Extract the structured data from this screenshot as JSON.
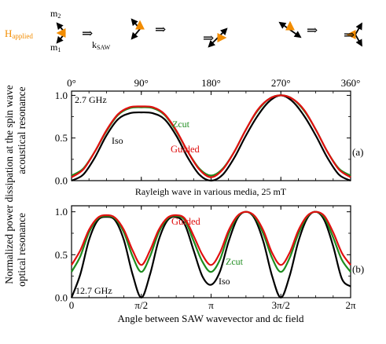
{
  "header": {
    "h_label": "H",
    "h_sub": "applied",
    "m2_label": "m",
    "m2_sub": "2",
    "m1_label": "m",
    "m1_sub": "1",
    "k_label": "k",
    "k_sub": "SAW",
    "arrow_glyph": "⇒",
    "h_color": "#F28C00"
  },
  "ylabel_lines": [
    "Normalized power dissipation at the spin wave",
    "acoustical resonance",
    "optical resonance"
  ],
  "xlabel": "Angle between SAW wavevector and dc field",
  "colors": {
    "iso": "#000000",
    "zcut": "#1E8C1E",
    "guided": "#E01010"
  },
  "chart_data": [
    {
      "type": "line",
      "panel_label": "(a)",
      "inset_label": "2.7 GHz",
      "caption": "Rayleigh wave in various media, 25 mT",
      "xlim": [
        0,
        360
      ],
      "ylim": [
        0,
        1.05
      ],
      "x_ticks": [
        "0°",
        "90°",
        "180°",
        "270°",
        "360°"
      ],
      "x_tick_values": [
        0,
        90,
        180,
        270,
        360
      ],
      "y_ticks": [
        "0.0",
        "0.5",
        "1.0"
      ],
      "y_tick_values": [
        0,
        0.5,
        1.0
      ],
      "x": [
        0,
        15,
        30,
        45,
        60,
        75,
        90,
        105,
        120,
        135,
        150,
        165,
        180,
        195,
        210,
        225,
        240,
        255,
        270,
        285,
        300,
        315,
        330,
        345,
        360
      ],
      "series": [
        {
          "name": "Iso",
          "key": "iso",
          "values": [
            0.0,
            0.07,
            0.27,
            0.53,
            0.72,
            0.79,
            0.8,
            0.79,
            0.72,
            0.53,
            0.27,
            0.07,
            0.0,
            0.07,
            0.27,
            0.53,
            0.76,
            0.93,
            1.0,
            0.93,
            0.76,
            0.53,
            0.27,
            0.07,
            0.0
          ]
        },
        {
          "name": "Zcut",
          "key": "zcut",
          "values": [
            0.06,
            0.14,
            0.34,
            0.58,
            0.77,
            0.85,
            0.86,
            0.85,
            0.77,
            0.58,
            0.34,
            0.14,
            0.06,
            0.14,
            0.34,
            0.6,
            0.82,
            0.96,
            1.0,
            0.96,
            0.82,
            0.6,
            0.34,
            0.14,
            0.06
          ]
        },
        {
          "name": "Guided",
          "key": "guided",
          "values": [
            0.04,
            0.13,
            0.34,
            0.59,
            0.78,
            0.86,
            0.87,
            0.86,
            0.78,
            0.59,
            0.34,
            0.13,
            0.04,
            0.13,
            0.34,
            0.6,
            0.83,
            0.96,
            1.0,
            0.96,
            0.83,
            0.6,
            0.34,
            0.13,
            0.04
          ]
        }
      ],
      "annotations": [
        "Zcut",
        "Iso",
        "Guided"
      ]
    },
    {
      "type": "line",
      "panel_label": "(b)",
      "inset_label": "12.7 GHz",
      "xlim": [
        0,
        360
      ],
      "ylim": [
        0,
        1.07
      ],
      "x_ticks": [
        "0",
        "π/2",
        "π",
        "3π/2",
        "2π"
      ],
      "x_tick_values": [
        0,
        90,
        180,
        270,
        360
      ],
      "y_ticks": [
        "0.0",
        "0.5",
        "1.0"
      ],
      "y_tick_values": [
        0,
        0.5,
        1.0
      ],
      "x": [
        0,
        11.25,
        22.5,
        33.75,
        45,
        56.25,
        67.5,
        78.75,
        90,
        101.25,
        112.5,
        123.75,
        135,
        146.25,
        157.5,
        168.75,
        180,
        191.25,
        202.5,
        213.75,
        225,
        236.25,
        247.5,
        258.75,
        270,
        281.25,
        292.5,
        303.75,
        315,
        326.25,
        337.5,
        348.75,
        360
      ],
      "series": [
        {
          "name": "Iso",
          "key": "iso",
          "values": [
            0.0,
            0.27,
            0.67,
            0.9,
            0.94,
            0.9,
            0.67,
            0.27,
            0.0,
            0.27,
            0.67,
            0.9,
            0.94,
            0.85,
            0.55,
            0.25,
            0.15,
            0.3,
            0.65,
            0.92,
            1.0,
            0.92,
            0.65,
            0.25,
            0.0,
            0.25,
            0.65,
            0.92,
            1.0,
            0.9,
            0.6,
            0.22,
            0.13
          ]
        },
        {
          "name": "Zcut",
          "key": "zcut",
          "values": [
            0.3,
            0.48,
            0.76,
            0.92,
            0.95,
            0.92,
            0.76,
            0.48,
            0.3,
            0.48,
            0.76,
            0.92,
            0.95,
            0.9,
            0.66,
            0.42,
            0.3,
            0.44,
            0.74,
            0.94,
            1.0,
            0.94,
            0.74,
            0.46,
            0.3,
            0.46,
            0.74,
            0.94,
            1.0,
            0.93,
            0.7,
            0.44,
            0.3
          ]
        },
        {
          "name": "Guided",
          "key": "guided",
          "values": [
            0.38,
            0.55,
            0.79,
            0.93,
            0.96,
            0.93,
            0.79,
            0.55,
            0.38,
            0.55,
            0.79,
            0.93,
            0.96,
            0.92,
            0.72,
            0.5,
            0.38,
            0.52,
            0.78,
            0.95,
            1.0,
            0.95,
            0.78,
            0.52,
            0.38,
            0.52,
            0.78,
            0.95,
            1.0,
            0.95,
            0.76,
            0.52,
            0.38
          ]
        }
      ],
      "annotations": [
        "Guided",
        "Zcut",
        "Iso"
      ]
    }
  ]
}
